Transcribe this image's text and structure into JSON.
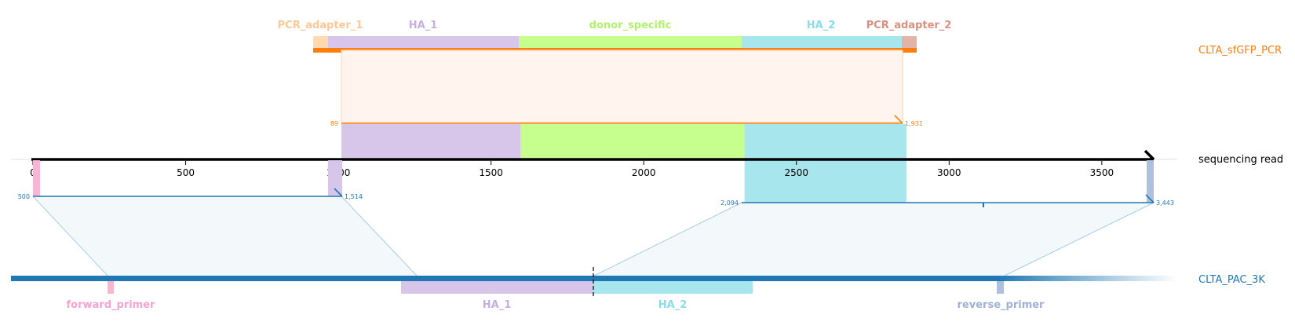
{
  "references": {
    "pcr": {
      "label": "CLTA_sfGFP_PCR",
      "color": "#ff7f0e"
    },
    "read": {
      "label": "sequencing read",
      "color": "#000000"
    },
    "genome": {
      "label": "CLTA_PAC_3K",
      "color": "#1f77b4"
    }
  },
  "axis": {
    "ticks": [
      0,
      500,
      1000,
      1500,
      2000,
      2500,
      3000,
      3500
    ],
    "range": [
      0,
      3670
    ]
  },
  "pcr_features": [
    {
      "name": "PCR_adapter_1",
      "color": "#ffd9b0",
      "text_color": "#fcc996"
    },
    {
      "name": "HA_1",
      "color": "#d8c5ea",
      "text_color": "#c5b0e0"
    },
    {
      "name": "donor_specific",
      "color": "#c7ff8e",
      "text_color": "#b3f070"
    },
    {
      "name": "HA_2",
      "color": "#a8e6ee",
      "text_color": "#8adce8"
    },
    {
      "name": "PCR_adapter_2",
      "color": "#e3b3a8",
      "text_color": "#d99080"
    }
  ],
  "read_features": [
    {
      "name": "HA_1",
      "color": "#d8c5ea",
      "start": 1010,
      "end": 1597
    },
    {
      "name": "donor_specific",
      "color": "#c7ff8e",
      "start": 1597,
      "end": 2330
    },
    {
      "name": "HA_2",
      "color": "#a8e6ee",
      "start": 2330,
      "end": 2860
    }
  ],
  "genome_features": [
    {
      "name": "forward_primer",
      "color": "#f7b6d2"
    },
    {
      "name": "HA_1",
      "color": "#d8c5ea"
    },
    {
      "name": "HA_2",
      "color": "#a8e6ee"
    },
    {
      "name": "reverse_primer",
      "color": "#aec0dc"
    }
  ],
  "alignments": [
    {
      "target": "pcr",
      "read_start": 1010,
      "read_end": 2860,
      "label_start": "89",
      "label_end": "1,931",
      "color": "#ff7f0e"
    },
    {
      "target": "genome",
      "read_start": 0,
      "read_end": 1010,
      "label_start": "500",
      "label_end": "1,514",
      "color": "#1f77b4"
    },
    {
      "target": "genome",
      "read_start": 2330,
      "read_end": 3670,
      "label_start": "2,094",
      "label_end": "3,443",
      "color": "#1f77b4"
    }
  ]
}
